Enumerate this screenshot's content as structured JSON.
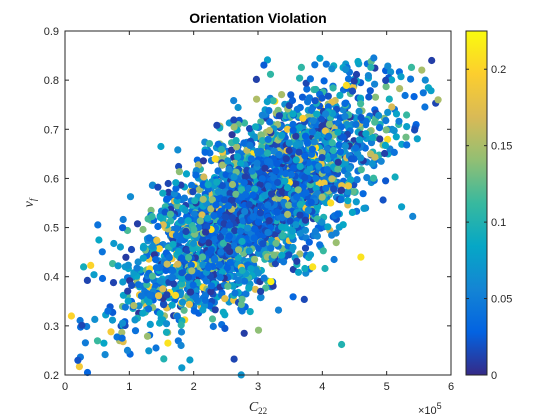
{
  "chart_data": {
    "type": "scatter",
    "title": "Orientation Violation",
    "xlabel": "C",
    "xlabel_subscript": "22",
    "ylabel": "v",
    "ylabel_subscript": "f",
    "xlim": [
      0,
      600000
    ],
    "ylim": [
      0.2,
      0.9
    ],
    "x_ticks": [
      0,
      100000,
      200000,
      300000,
      400000,
      500000,
      600000
    ],
    "x_tick_labels": [
      "0",
      "1",
      "2",
      "3",
      "4",
      "5",
      "6"
    ],
    "x_exponent_base": "×10",
    "x_exponent": "5",
    "y_ticks": [
      0.2,
      0.3,
      0.4,
      0.5,
      0.6,
      0.7,
      0.8,
      0.9
    ],
    "y_tick_labels": [
      "0.2",
      "0.3",
      "0.4",
      "0.5",
      "0.6",
      "0.7",
      "0.8",
      "0.9"
    ],
    "colorbar": {
      "colormap": "parula",
      "clim": [
        0,
        0.225
      ],
      "ticks": [
        0,
        0.05,
        0.1,
        0.15,
        0.2
      ],
      "tick_labels": [
        "0",
        "0.05",
        "0.1",
        "0.15",
        "0.2"
      ]
    },
    "point_cloud": {
      "count": 3000,
      "x_mean": 300000,
      "x_std": 95000,
      "y_mean": 0.55,
      "y_std": 0.115,
      "correlation": 0.72,
      "x_range": [
        20000,
        580000
      ],
      "y_range": [
        0.2,
        0.845
      ]
    },
    "highlighted_points": [
      {
        "x": 40000,
        "y": 0.423,
        "c": 0.2
      },
      {
        "x": 160000,
        "y": 0.265,
        "c": 0.21
      },
      {
        "x": 320000,
        "y": 0.39,
        "c": 0.22
      },
      {
        "x": 385000,
        "y": 0.42,
        "c": 0.21
      },
      {
        "x": 460000,
        "y": 0.44,
        "c": 0.21
      },
      {
        "x": 10000,
        "y": 0.32,
        "c": 0.2
      },
      {
        "x": 430000,
        "y": 0.262,
        "c": 0.1
      },
      {
        "x": 35000,
        "y": 0.205,
        "c": 0.03
      },
      {
        "x": 20000,
        "y": 0.23,
        "c": 0.02
      },
      {
        "x": 570000,
        "y": 0.84,
        "c": 0.01
      },
      {
        "x": 580000,
        "y": 0.76,
        "c": 0.15
      },
      {
        "x": 560000,
        "y": 0.8,
        "c": 0.06
      },
      {
        "x": 480000,
        "y": 0.845,
        "c": 0.05
      }
    ]
  }
}
